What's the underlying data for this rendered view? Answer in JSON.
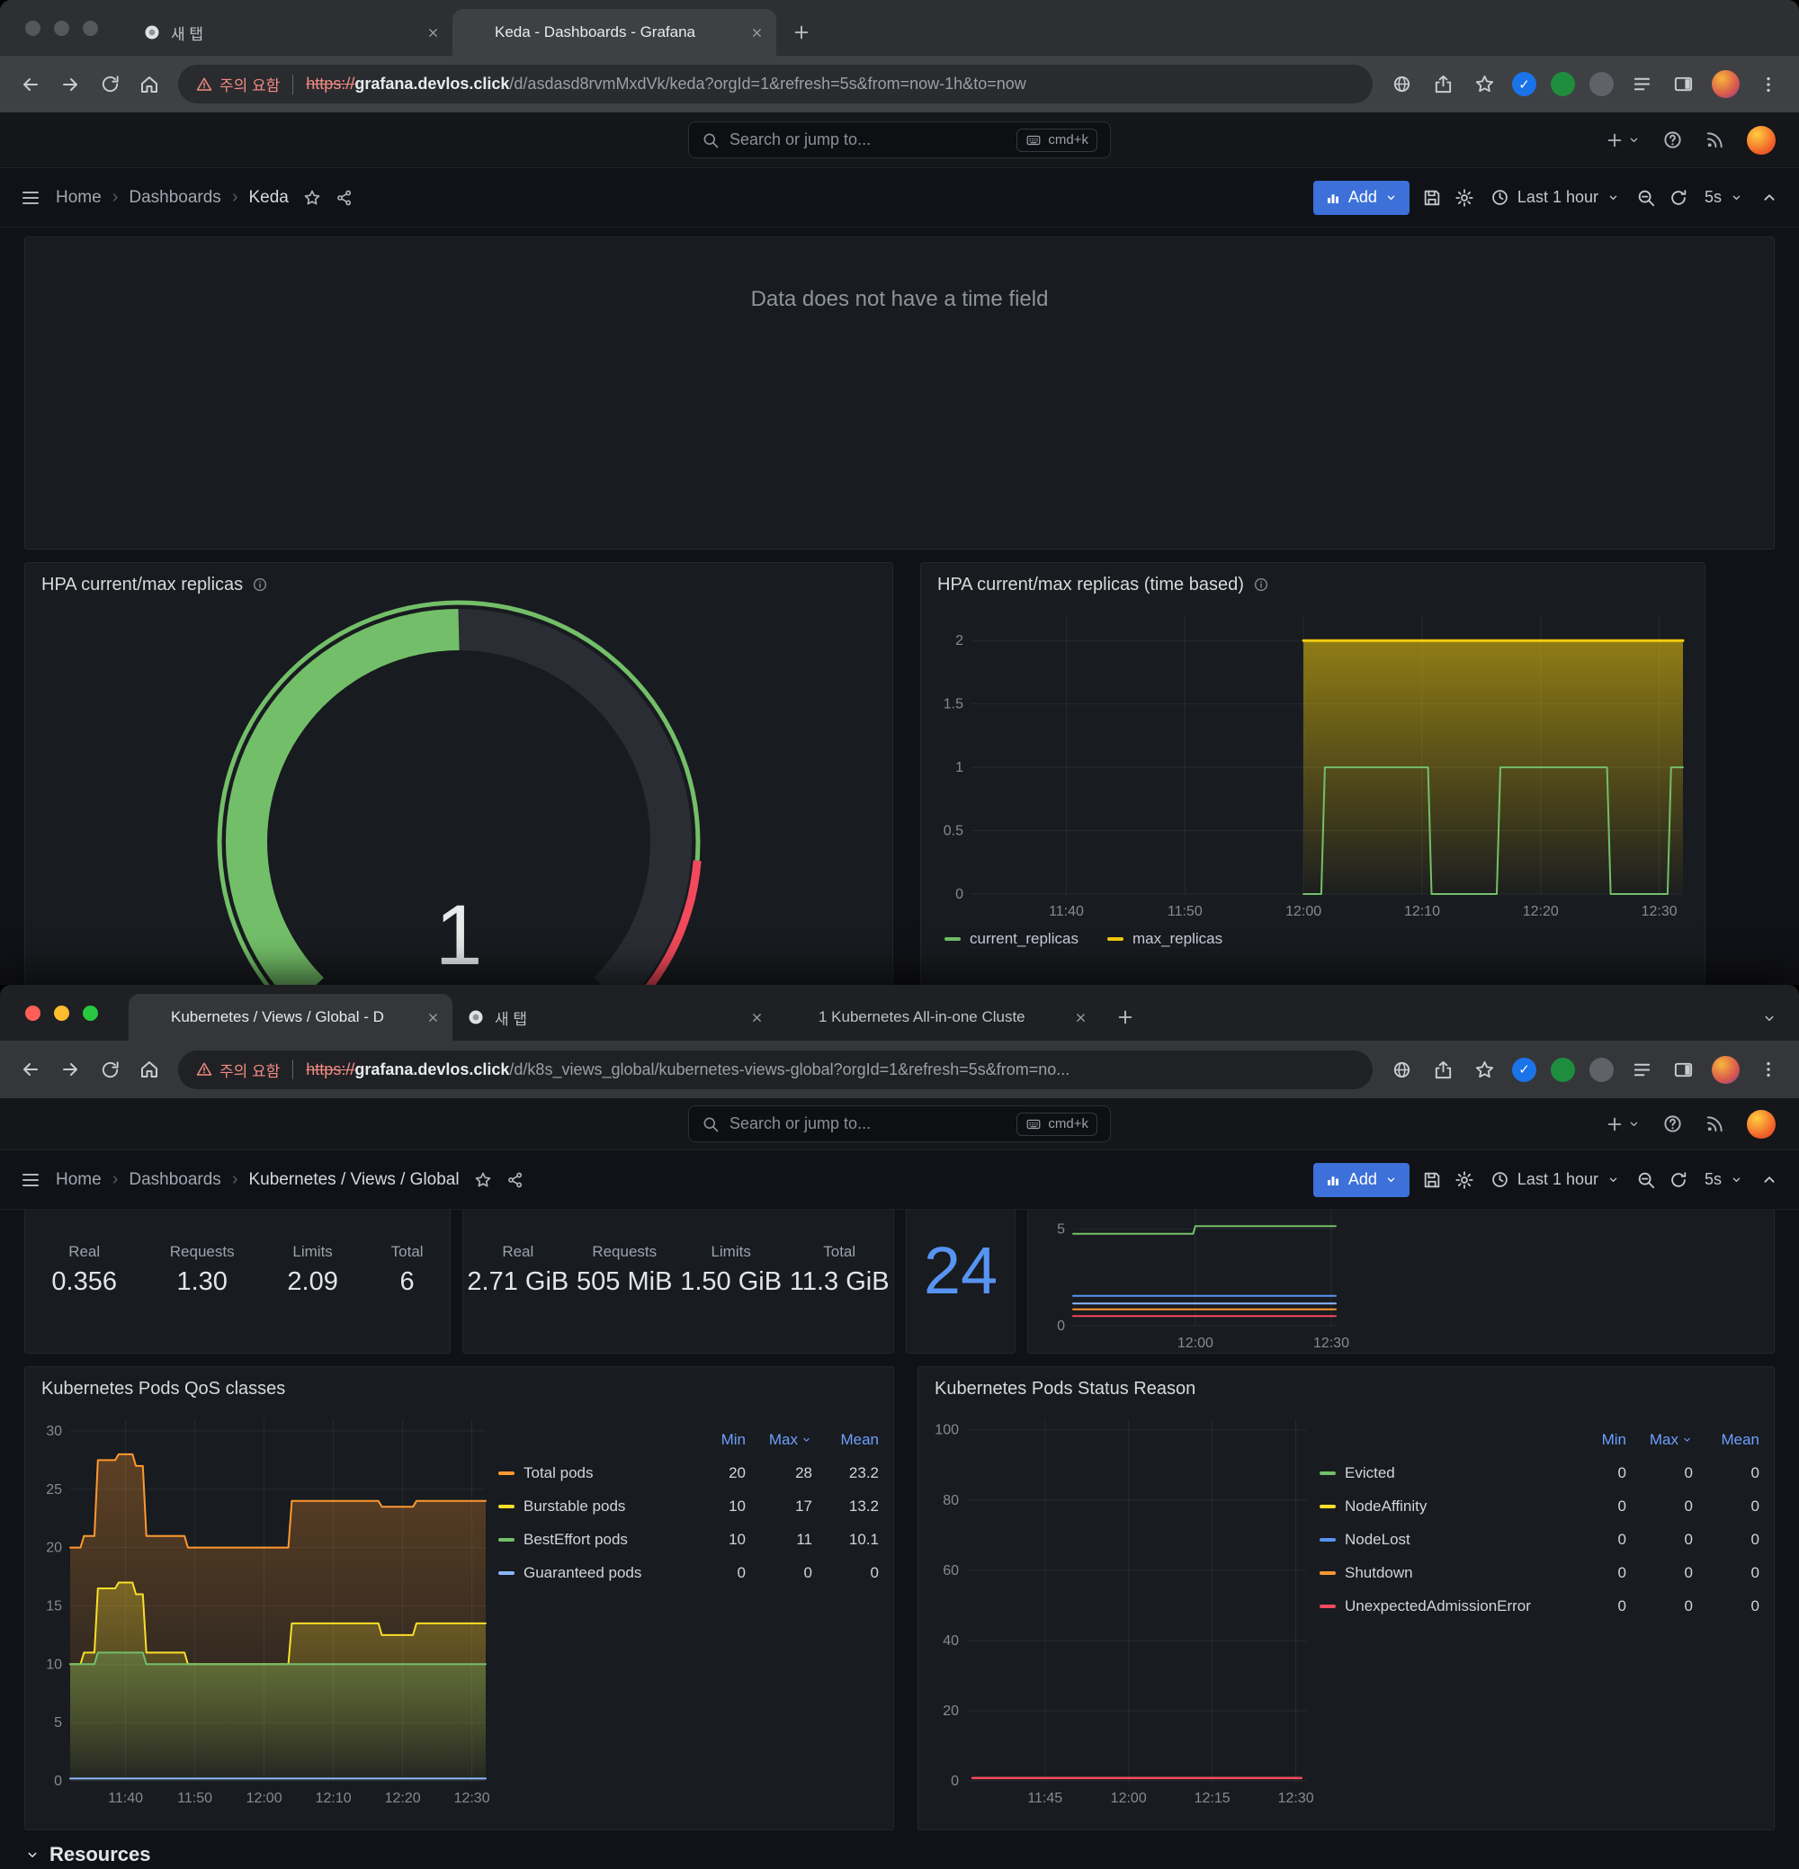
{
  "chrome_top": {
    "tabs": [
      {
        "title": "새 탭",
        "favicon": "chrome"
      },
      {
        "title": "Keda - Dashboards - Grafana",
        "favicon": "grafana"
      }
    ],
    "url_warning": "주의 요함",
    "url_scheme": "https://",
    "url_domain": "grafana.devlos.click",
    "url_path": "/d/asdasd8rvmMxdVk/keda?orgId=1&refresh=5s&from=now-1h&to=now"
  },
  "chrome_bottom": {
    "tabs": [
      {
        "title": "Kubernetes / Views / Global - D",
        "favicon": "grafana"
      },
      {
        "title": "새 탭",
        "favicon": "chrome"
      },
      {
        "title": "1 Kubernetes All-in-one Cluste",
        "favicon": "grafana"
      }
    ],
    "url_warning": "주의 요함",
    "url_scheme": "https://",
    "url_domain": "grafana.devlos.click",
    "url_path": "/d/k8s_views_global/kubernetes-views-global?orgId=1&refresh=5s&from=no..."
  },
  "grafana": {
    "search_placeholder": "Search or jump to...",
    "search_shortcut": "cmd+k",
    "add_label": "Add",
    "time_range": "Last 1 hour",
    "refresh_interval": "5s"
  },
  "dash_top": {
    "breadcrumb": {
      "home": "Home",
      "dashboards": "Dashboards",
      "current": "Keda"
    },
    "empty_message": "Data does not have a time field"
  },
  "dash_bottom": {
    "breadcrumb": {
      "home": "Home",
      "dashboards": "Dashboards",
      "current": "Kubernetes / Views / Global"
    },
    "cpu_stats": [
      {
        "label": "Real",
        "value": "0.356"
      },
      {
        "label": "Requests",
        "value": "1.30"
      },
      {
        "label": "Limits",
        "value": "2.09"
      },
      {
        "label": "Total",
        "value": "6"
      }
    ],
    "ram_stats": [
      {
        "label": "Real",
        "value": "2.71 GiB"
      },
      {
        "label": "Requests",
        "value": "505 MiB"
      },
      {
        "label": "Limits",
        "value": "1.50 GiB"
      },
      {
        "label": "Total",
        "value": "11.3 GiB"
      }
    ],
    "pod_count": "24",
    "resources_label": "Resources"
  },
  "chart_data": [
    {
      "id": "hpa_gauge",
      "type": "gauge",
      "title": "HPA current/max replicas",
      "value": 1,
      "min": 0,
      "max": 2,
      "cy": 262,
      "radius": 236,
      "font": 95,
      "color_value": "#73bf69",
      "color_rest": "#2a2e34",
      "color_red": "#f2495c",
      "red_from": 0.85
    },
    {
      "id": "hpa_ts",
      "type": "line",
      "title": "HPA current/max replicas (time based)",
      "xlim": [
        2,
        62
      ],
      "ylim": [
        0,
        2.2
      ],
      "pad": [
        46,
        14,
        10,
        32
      ],
      "yticks": [
        {
          "v": 0,
          "l": "0"
        },
        {
          "v": 0.5,
          "l": "0.5"
        },
        {
          "v": 1,
          "l": "1"
        },
        {
          "v": 1.5,
          "l": "1.5"
        },
        {
          "v": 2,
          "l": "2"
        }
      ],
      "xticks": [
        {
          "v": 10,
          "l": "11:40"
        },
        {
          "v": 20,
          "l": "11:50"
        },
        {
          "v": 30,
          "l": "12:00"
        },
        {
          "v": 40,
          "l": "12:10"
        },
        {
          "v": 50,
          "l": "12:20"
        },
        {
          "v": 60,
          "l": "12:30"
        }
      ],
      "series": [
        {
          "name": "max_replicas",
          "color": "#f2cc0c",
          "w": 3,
          "fill": 0.55,
          "points": [
            [
              30,
              2
            ],
            [
              62,
              2
            ]
          ]
        },
        {
          "name": "current_replicas",
          "color": "#73bf69",
          "w": 2,
          "fill": 0,
          "points": [
            [
              30,
              0
            ],
            [
              31.5,
              0
            ],
            [
              31.8,
              1
            ],
            [
              40.5,
              1
            ],
            [
              40.8,
              0
            ],
            [
              46.3,
              0
            ],
            [
              46.6,
              1
            ],
            [
              55.6,
              1
            ],
            [
              55.9,
              0
            ],
            [
              60.7,
              0
            ],
            [
              61,
              1
            ],
            [
              62,
              1
            ]
          ]
        }
      ]
    },
    {
      "id": "res_mini",
      "type": "line",
      "xlim": [
        3,
        61
      ],
      "ylim": [
        0,
        6.6
      ],
      "pad": [
        30,
        8,
        4,
        26
      ],
      "yticks": [
        {
          "v": 0,
          "l": "0"
        },
        {
          "v": 5,
          "l": "5"
        }
      ],
      "xticks": [
        {
          "v": 30,
          "l": "12:00"
        },
        {
          "v": 60,
          "l": "12:30"
        }
      ],
      "series": [
        {
          "name": "series-purple",
          "color": "#b877d9",
          "w": 2,
          "points": [
            [
              3,
              6.5
            ],
            [
              61,
              6.5
            ]
          ]
        },
        {
          "name": "series-green",
          "color": "#73bf69",
          "w": 2,
          "points": [
            [
              3,
              4.75
            ],
            [
              29.5,
              4.75
            ],
            [
              30,
              5.15
            ],
            [
              61,
              5.15
            ]
          ]
        },
        {
          "name": "series-blue",
          "color": "#5794f2",
          "w": 2,
          "points": [
            [
              3,
              1.55
            ],
            [
              61,
              1.55
            ]
          ]
        },
        {
          "name": "series-lightblue",
          "color": "#8ab8ff",
          "w": 2,
          "points": [
            [
              3,
              1.15
            ],
            [
              61,
              1.15
            ]
          ]
        },
        {
          "name": "series-orange",
          "color": "#ff9830",
          "w": 2,
          "points": [
            [
              3,
              0.85
            ],
            [
              61,
              0.85
            ]
          ]
        },
        {
          "name": "series-red",
          "color": "#f2495c",
          "w": 2,
          "points": [
            [
              3,
              0.5
            ],
            [
              61,
              0.5
            ]
          ]
        }
      ]
    },
    {
      "id": "qos",
      "type": "line",
      "title": "Kubernetes Pods QoS classes",
      "xlim": [
        2,
        62
      ],
      "ylim": [
        0,
        31
      ],
      "pad": [
        40,
        14,
        10,
        34
      ],
      "yticks": [
        {
          "v": 0,
          "l": "0"
        },
        {
          "v": 5,
          "l": "5"
        },
        {
          "v": 10,
          "l": "10"
        },
        {
          "v": 15,
          "l": "15"
        },
        {
          "v": 20,
          "l": "20"
        },
        {
          "v": 25,
          "l": "25"
        },
        {
          "v": 30,
          "l": "30"
        }
      ],
      "xticks": [
        {
          "v": 10,
          "l": "11:40"
        },
        {
          "v": 20,
          "l": "11:50"
        },
        {
          "v": 30,
          "l": "12:00"
        },
        {
          "v": 40,
          "l": "12:10"
        },
        {
          "v": 50,
          "l": "12:20"
        },
        {
          "v": 60,
          "l": "12:30"
        }
      ],
      "series": [
        {
          "name": "Total pods",
          "color": "#ff9830",
          "w": 2,
          "fill": 0.3,
          "points": [
            [
              2,
              20
            ],
            [
              3.5,
              20
            ],
            [
              4,
              21
            ],
            [
              5.5,
              21
            ],
            [
              6,
              27.5
            ],
            [
              8.5,
              27.5
            ],
            [
              9,
              28
            ],
            [
              11,
              28
            ],
            [
              11.5,
              27
            ],
            [
              12.5,
              27
            ],
            [
              13,
              21
            ],
            [
              18.5,
              21
            ],
            [
              19,
              20
            ],
            [
              33.5,
              20
            ],
            [
              34,
              24
            ],
            [
              46.5,
              24
            ],
            [
              47,
              23.5
            ],
            [
              51.5,
              23.5
            ],
            [
              52,
              24
            ],
            [
              62,
              24
            ]
          ]
        },
        {
          "name": "Burstable pods",
          "color": "#fade2a",
          "w": 2,
          "fill": 0.3,
          "points": [
            [
              2,
              10
            ],
            [
              3.5,
              10
            ],
            [
              4,
              11
            ],
            [
              5.5,
              11
            ],
            [
              6,
              16.5
            ],
            [
              8.5,
              16.5
            ],
            [
              9,
              17
            ],
            [
              11,
              17
            ],
            [
              11.5,
              16
            ],
            [
              12.5,
              16
            ],
            [
              13,
              11
            ],
            [
              18.5,
              11
            ],
            [
              19,
              10
            ],
            [
              33.5,
              10
            ],
            [
              34,
              13.5
            ],
            [
              46.5,
              13.5
            ],
            [
              47,
              12.5
            ],
            [
              51.5,
              12.5
            ],
            [
              52,
              13.5
            ],
            [
              62,
              13.5
            ]
          ]
        },
        {
          "name": "BestEffort pods",
          "color": "#73bf69",
          "w": 2,
          "fill": 0.3,
          "points": [
            [
              2,
              10
            ],
            [
              5.5,
              10
            ],
            [
              6,
              11
            ],
            [
              12.5,
              11
            ],
            [
              13,
              10
            ],
            [
              62,
              10
            ]
          ]
        },
        {
          "name": "Guaranteed pods",
          "color": "#8ab8ff",
          "w": 2,
          "fill": 0,
          "points": [
            [
              2,
              0.2
            ],
            [
              62,
              0.2
            ]
          ]
        }
      ],
      "legend": {
        "headers": [
          "Min",
          "Max",
          "Mean"
        ],
        "rows": [
          {
            "name": "Total pods",
            "min": "20",
            "max": "28",
            "mean": "23.2"
          },
          {
            "name": "Burstable pods",
            "min": "10",
            "max": "17",
            "mean": "13.2"
          },
          {
            "name": "BestEffort pods",
            "min": "10",
            "max": "11",
            "mean": "10.1"
          },
          {
            "name": "Guaranteed pods",
            "min": "0",
            "max": "0",
            "mean": "0"
          }
        ]
      }
    },
    {
      "id": "status_reason",
      "type": "line",
      "title": "Kubernetes Pods Status Reason",
      "xlim": [
        1,
        62
      ],
      "ylim": [
        0,
        103
      ],
      "pad": [
        44,
        14,
        10,
        34
      ],
      "yticks": [
        {
          "v": 0,
          "l": "0"
        },
        {
          "v": 20,
          "l": "20"
        },
        {
          "v": 40,
          "l": "40"
        },
        {
          "v": 60,
          "l": "60"
        },
        {
          "v": 80,
          "l": "80"
        },
        {
          "v": 100,
          "l": "100"
        }
      ],
      "xticks": [
        {
          "v": 15,
          "l": "11:45"
        },
        {
          "v": 30,
          "l": "12:00"
        },
        {
          "v": 45,
          "l": "12:15"
        },
        {
          "v": 60,
          "l": "12:30"
        }
      ],
      "series": [
        {
          "name": "Evicted",
          "color": "#73bf69",
          "w": 2,
          "points": [
            [
              2,
              0.8
            ],
            [
              61,
              0.8
            ]
          ]
        },
        {
          "name": "NodeAffinity",
          "color": "#fade2a",
          "w": 2,
          "points": [
            [
              2,
              0.8
            ],
            [
              61,
              0.8
            ]
          ]
        },
        {
          "name": "NodeLost",
          "color": "#5794f2",
          "w": 2,
          "points": [
            [
              2,
              0.8
            ],
            [
              61,
              0.8
            ]
          ]
        },
        {
          "name": "Shutdown",
          "color": "#ff9830",
          "w": 2,
          "points": [
            [
              2,
              0.8
            ],
            [
              61,
              0.8
            ]
          ]
        },
        {
          "name": "UnexpectedAdmissionError",
          "color": "#f2495c",
          "w": 2.5,
          "points": [
            [
              2,
              0.8
            ],
            [
              61,
              0.8
            ]
          ]
        }
      ],
      "legend": {
        "headers": [
          "Min",
          "Max",
          "Mean"
        ],
        "rows": [
          {
            "name": "Evicted",
            "min": "0",
            "max": "0",
            "mean": "0"
          },
          {
            "name": "NodeAffinity",
            "min": "0",
            "max": "0",
            "mean": "0"
          },
          {
            "name": "NodeLost",
            "min": "0",
            "max": "0",
            "mean": "0"
          },
          {
            "name": "Shutdown",
            "min": "0",
            "max": "0",
            "mean": "0"
          },
          {
            "name": "UnexpectedAdmissionError",
            "min": "0",
            "max": "0",
            "mean": "0"
          }
        ]
      }
    }
  ]
}
